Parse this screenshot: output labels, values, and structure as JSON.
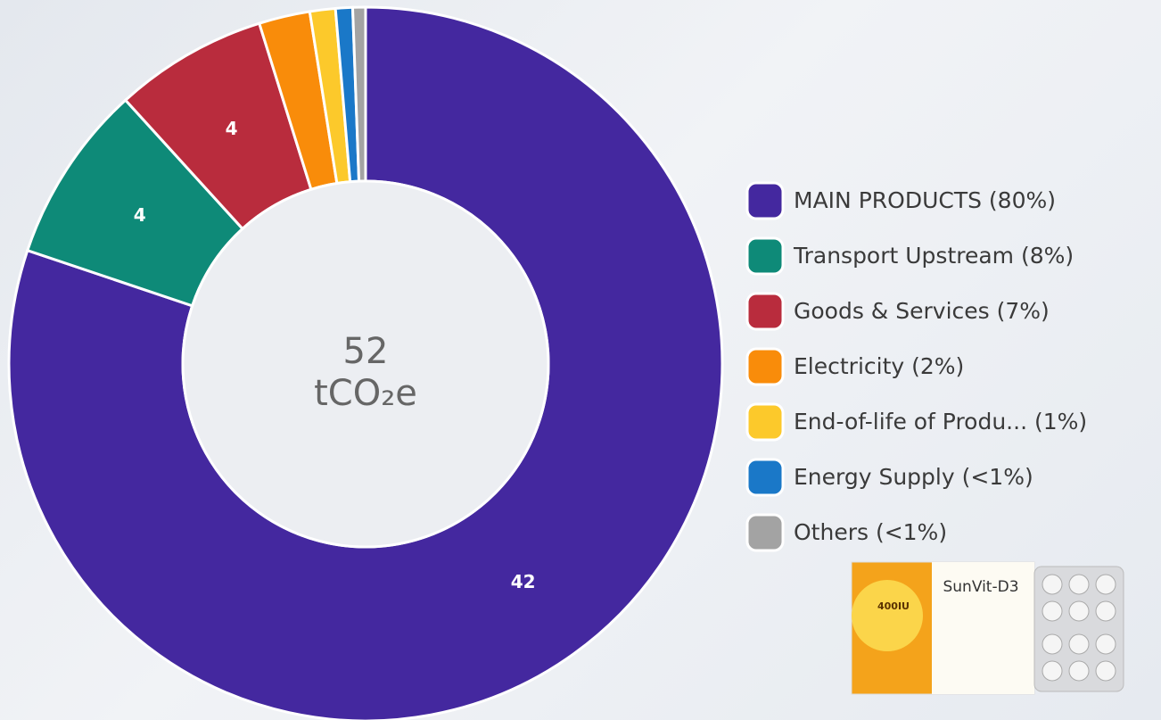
{
  "chart_data": {
    "type": "pie",
    "categories": [
      "MAIN PRODUCTS  (80%)",
      "Transport Upstream (8%)",
      "Goods & Services (7%)",
      "Electricity (2%)",
      "End-of-life of Produ... (1%)",
      "Energy Supply (<1%)",
      "Others (<1%)"
    ],
    "values": [
      41.6,
      4.2,
      3.6,
      1.2,
      0.6,
      0.4,
      0.3
    ],
    "value_labels": [
      "42",
      "4",
      "4",
      null,
      null,
      null,
      null
    ],
    "colors": [
      "#44289f",
      "#0e8a78",
      "#b92c3d",
      "#f98c0a",
      "#fcc92b",
      "#1a78c8",
      "#a3a3a3"
    ],
    "donut": true,
    "center_value": 52,
    "center_unit": "tCO₂e",
    "legend": "right"
  },
  "product": {
    "brand": "SunVit-D3",
    "dose": "400IU"
  }
}
